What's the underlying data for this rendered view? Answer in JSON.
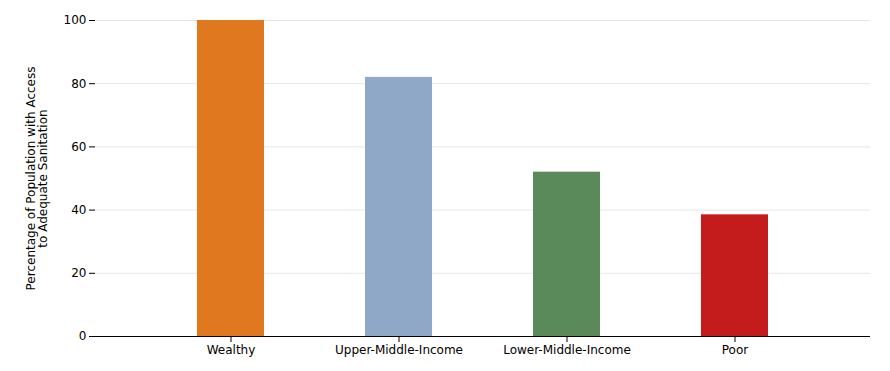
{
  "chart_data": {
    "type": "bar",
    "categories": [
      "Wealthy",
      "Upper-Middle-Income",
      "Lower-Middle-Income",
      "Poor"
    ],
    "values": [
      100,
      82,
      52,
      38.5
    ],
    "colors": [
      "#E07820",
      "#8FA8C8",
      "#5A8A5A",
      "#C41C1C"
    ],
    "ylabel": "Percentage of Population with Access\nto Adequate Sanitation",
    "ylim": [
      0,
      100
    ],
    "yticks": [
      0,
      20,
      40,
      60,
      80,
      100
    ],
    "grid": true
  }
}
